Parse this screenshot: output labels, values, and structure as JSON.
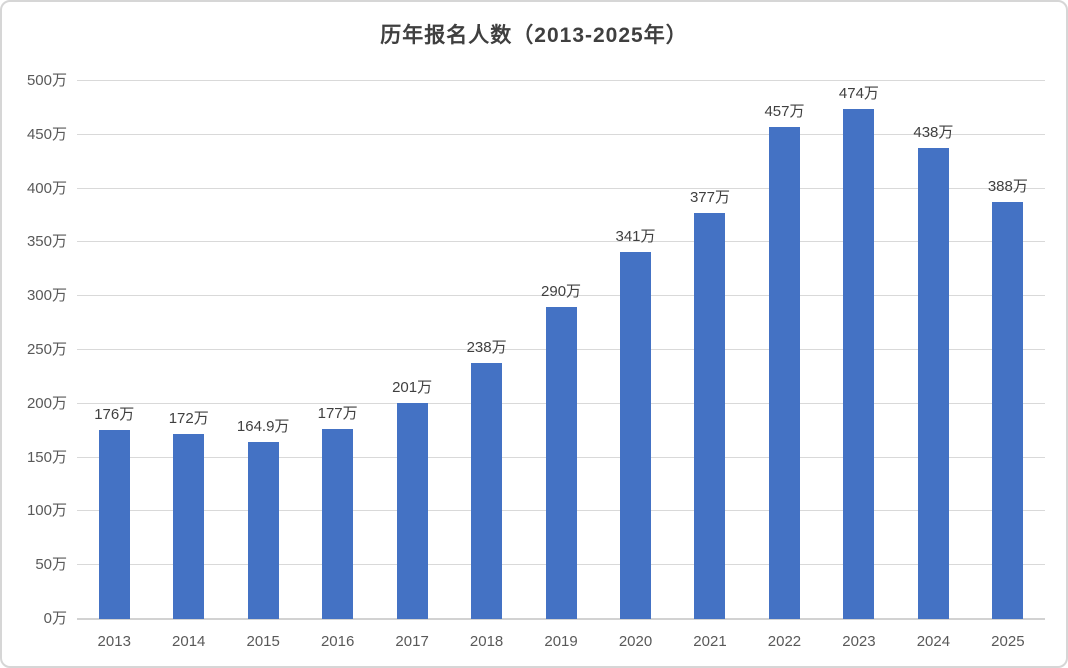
{
  "title": "历年报名人数（2013-2025年）",
  "colors": {
    "bar": "#4472C4",
    "gridline": "#D9D9D9",
    "axis_line": "#D2D2D2",
    "title_text": "#3F3F3F",
    "data_label_text": "#404040",
    "tick_text": "#595959",
    "border": "#D6D6D6",
    "background": "#FFFFFF"
  },
  "chart_data": {
    "type": "bar",
    "title": "历年报名人数（2013-2025年）",
    "categories": [
      "2013",
      "2014",
      "2015",
      "2016",
      "2017",
      "2018",
      "2019",
      "2020",
      "2021",
      "2022",
      "2023",
      "2024",
      "2025"
    ],
    "values": [
      176,
      172,
      164.9,
      177,
      201,
      238,
      290,
      341,
      377,
      457,
      474,
      438,
      388
    ],
    "data_labels": [
      "176万",
      "172万",
      "164.9万",
      "177万",
      "201万",
      "238万",
      "290万",
      "341万",
      "377万",
      "457万",
      "474万",
      "438万",
      "388万"
    ],
    "y_tick_labels": [
      "0万",
      "50万",
      "100万",
      "150万",
      "200万",
      "250万",
      "300万",
      "350万",
      "400万",
      "450万",
      "500万"
    ],
    "y_tick_step": 50,
    "ylim": [
      0,
      500
    ],
    "xlabel": "",
    "ylabel": "",
    "grid": true,
    "legend": false,
    "unit": "万"
  }
}
